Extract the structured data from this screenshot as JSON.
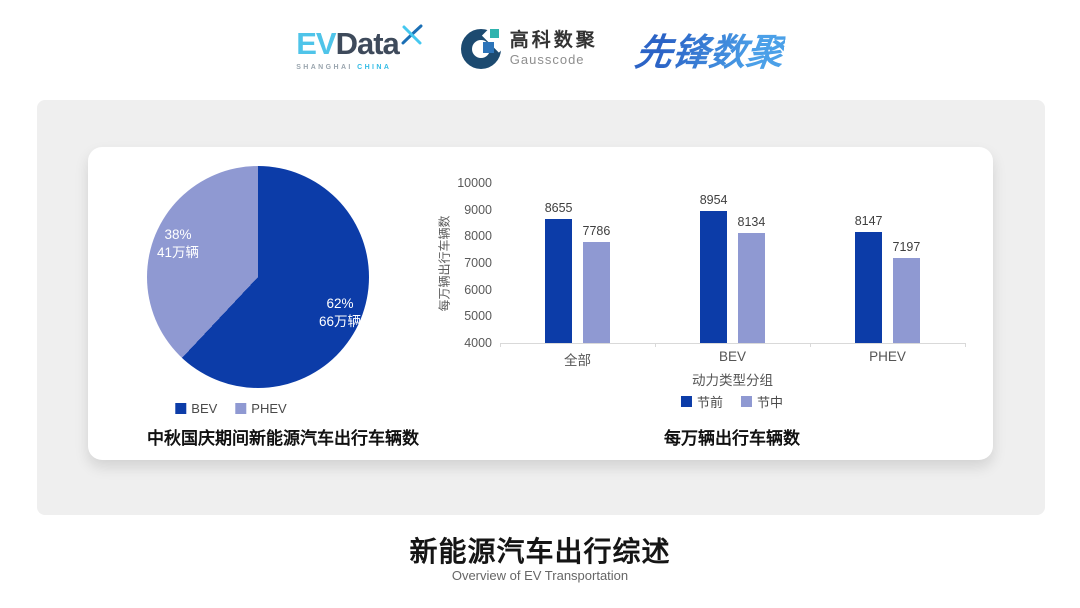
{
  "header": {
    "evdata": {
      "ev": "EV",
      "data": "Data",
      "sub_left": "SHANGHAI",
      "sub_right": "CHINA"
    },
    "gausscode": {
      "cn": "高科数聚",
      "en": "Gausscode"
    },
    "xianfeng": {
      "text": "先锋数聚"
    }
  },
  "colors": {
    "series_dark_blue": "#0C3CA8",
    "series_light_purple": "#8F99D2",
    "panel_background": "#EFEFEF",
    "card_background": "#FFFFFF",
    "axis_line": "#D9D9D9"
  },
  "chart_data": [
    {
      "type": "pie",
      "title": "中秋国庆期间新能源汽车出行车辆数",
      "legend_position": "bottom",
      "start_angle_deg": 0,
      "series": [
        {
          "name": "BEV",
          "percent": 62,
          "pct_label": "62%",
          "value_label": "66万辆",
          "color": "#0C3CA8"
        },
        {
          "name": "PHEV",
          "percent": 38,
          "pct_label": "38%",
          "value_label": "41万辆",
          "color": "#8F99D2"
        }
      ]
    },
    {
      "type": "bar",
      "title": "每万辆出行车辆数",
      "categories": [
        "全部",
        "BEV",
        "PHEV"
      ],
      "series": [
        {
          "name": "节前",
          "values": [
            8655,
            8954,
            8147
          ],
          "color": "#0C3CA8"
        },
        {
          "name": "节中",
          "values": [
            7786,
            8134,
            7197
          ],
          "color": "#8F99D2"
        }
      ],
      "xlabel": "动力类型分组",
      "ylabel": "每万辆出行车辆数",
      "ylim": [
        4000,
        10000
      ],
      "ytick_step": 1000,
      "grid": false,
      "legend_position": "bottom"
    }
  ],
  "footer": {
    "title": "新能源汽车出行综述",
    "subtitle": "Overview of EV Transportation"
  }
}
